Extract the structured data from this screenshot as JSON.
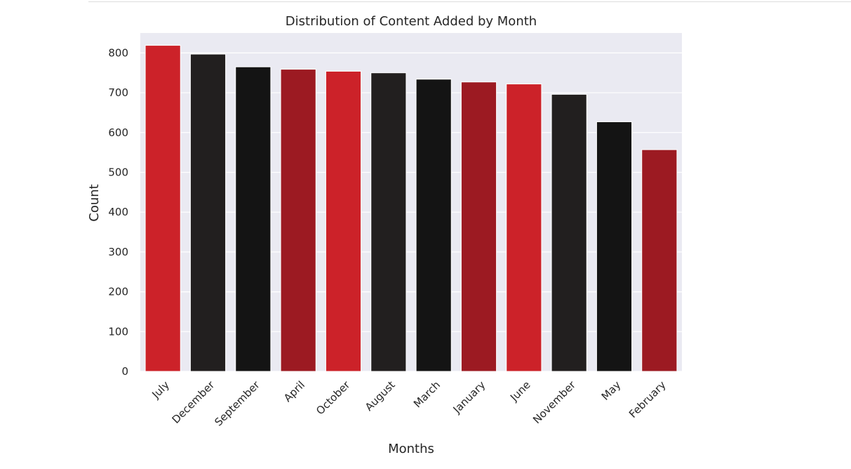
{
  "chart_data": {
    "type": "bar",
    "title": "Distribution of Content Added by Month",
    "xlabel": "Months",
    "ylabel": "Count",
    "categories": [
      "July",
      "December",
      "September",
      "April",
      "October",
      "August",
      "March",
      "January",
      "June",
      "November",
      "May",
      "February"
    ],
    "values": [
      819,
      797,
      765,
      759,
      754,
      750,
      734,
      727,
      722,
      696,
      627,
      557
    ],
    "ylim": [
      0,
      850
    ],
    "yticks": [
      0,
      100,
      200,
      300,
      400,
      500,
      600,
      700,
      800
    ],
    "grid": true,
    "colors": [
      "#cc2229",
      "#221f1f",
      "#141414",
      "#9c1a22"
    ],
    "plot_background": "#eaeaf2"
  }
}
